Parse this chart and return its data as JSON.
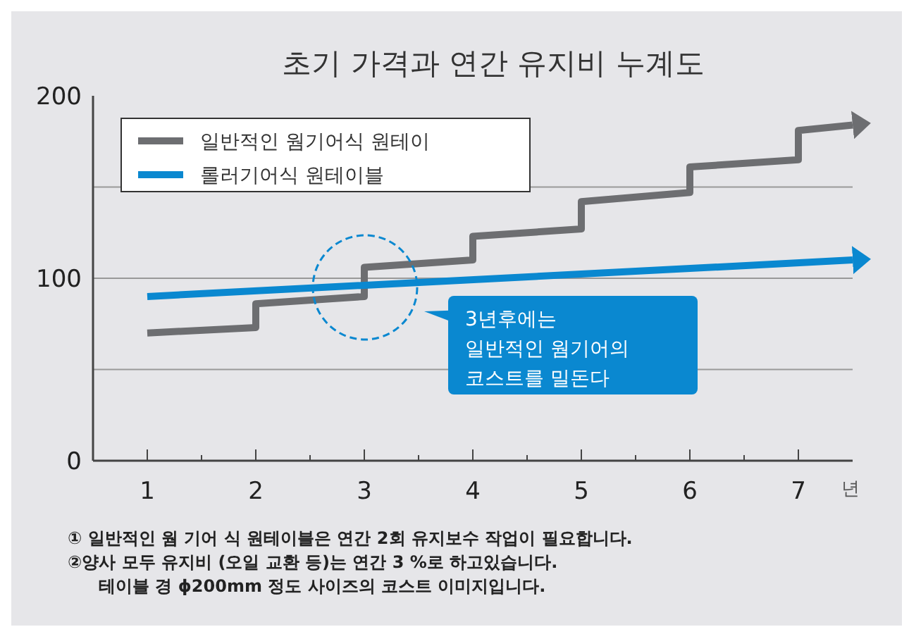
{
  "chart_data": {
    "type": "line",
    "title": "초기 가격과 연간 유지비 누계도",
    "xlabel": "년",
    "xlim": [
      0.5,
      7.5
    ],
    "xticks": [
      1,
      {
        "value": 1.5,
        "label": null
      },
      2,
      {
        "value": 2.5,
        "label": null
      },
      3,
      {
        "value": 3.5,
        "label": null
      },
      4,
      {
        "value": 4.5,
        "label": null
      },
      5,
      {
        "value": 5.5,
        "label": null
      },
      6,
      {
        "value": 6.5,
        "label": null
      },
      7
    ],
    "ylim": [
      0,
      200
    ],
    "yticks": [
      0,
      {
        "value": 50,
        "label": null
      },
      100,
      {
        "value": 150,
        "label": null
      },
      200
    ],
    "grid": "y",
    "legend": "top left",
    "series": [
      {
        "name": "일반적인 웜기어식 원테이",
        "color": "#6d6e71",
        "x": [
          1,
          2,
          2,
          3,
          3,
          4,
          4,
          5,
          5,
          6,
          6,
          7,
          7,
          7.5
        ],
        "values": [
          70,
          73,
          86,
          90,
          106,
          110,
          123,
          127,
          142,
          147,
          161,
          165,
          181,
          184
        ]
      },
      {
        "name": "롤러기어식 원테이블",
        "color": "#0a88d0",
        "x": [
          1,
          7.5
        ],
        "values": [
          90,
          110
        ]
      }
    ],
    "annotations": [
      "3년후에는\n일반적인 웜기어의\n코스트를 밀돈다",
      "① 일반적인 웜 기어 식 원테이블은 연간 2회 유지보수 작업이 필요합니다.",
      "②양사 모두 유지비 (오일 교환 등)는 연간 3 %로 하고있습니다.",
      "테이블 경 ϕ200mm 정도 사이즈의 코스트 이미지입니다."
    ]
  }
}
